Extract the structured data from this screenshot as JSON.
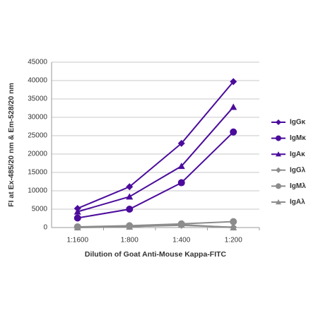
{
  "chart_data": {
    "type": "line",
    "x_label": "Dilution of Goat Anti-Mouse Kappa-FITC",
    "y_label": "FI at Ex-485/20 nm & Em-528/20 nm",
    "categories": [
      "1:1600",
      "1:800",
      "1:400",
      "1:200"
    ],
    "ylim": [
      0,
      45000
    ],
    "yticks": [
      0,
      5000,
      10000,
      15000,
      20000,
      25000,
      30000,
      35000,
      40000,
      45000
    ],
    "grid": true,
    "legend": "right",
    "series": [
      {
        "name": "IgGκ",
        "color": "#4b0c9c",
        "marker": "diamond",
        "values": [
          5200,
          11100,
          22900,
          39700
        ]
      },
      {
        "name": "IgMκ",
        "color": "#4b0c9c",
        "marker": "circle",
        "values": [
          2600,
          5000,
          12200,
          26000
        ]
      },
      {
        "name": "IgAκ",
        "color": "#4b0c9c",
        "marker": "triangle",
        "values": [
          4300,
          8400,
          16700,
          32800
        ]
      },
      {
        "name": "IgGλ",
        "color": "#8c8c8c",
        "marker": "diamond",
        "values": [
          100,
          300,
          600,
          100
        ]
      },
      {
        "name": "IgMλ",
        "color": "#8c8c8c",
        "marker": "circle",
        "values": [
          200,
          500,
          1000,
          1600
        ]
      },
      {
        "name": "IgAλ",
        "color": "#8c8c8c",
        "marker": "triangle",
        "values": [
          0,
          200,
          800,
          0
        ]
      }
    ]
  }
}
